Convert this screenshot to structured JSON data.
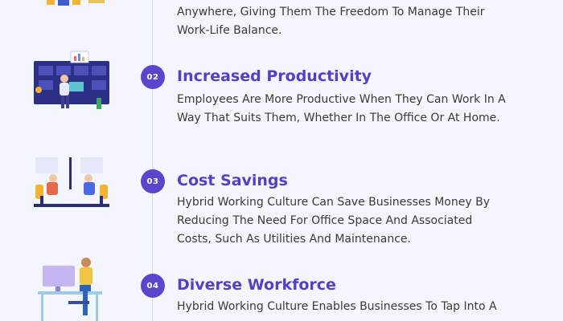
{
  "items": [
    {
      "number": "",
      "title": "",
      "lines": [
        "Anywhere, Giving Them The Freedom To Manage Their",
        "Work-Life Balance."
      ]
    },
    {
      "number": "02",
      "title": "Increased Productivity",
      "lines": [
        "Employees Are More Productive When They Can Work In A",
        "Way That Suits Them, Whether In The Office Or At Home."
      ]
    },
    {
      "number": "03",
      "title": "Cost Savings",
      "lines": [
        "Hybrid Working Culture Can Save Businesses Money By",
        "Reducing The Need For Office Space And Associated",
        "Costs, Such As Utilities And Maintenance."
      ]
    },
    {
      "number": "04",
      "title": "Diverse Workforce",
      "lines": [
        "Hybrid Working Culture Enables Businesses To Tap Into A"
      ]
    }
  ],
  "colors": {
    "accent": "#5847cc",
    "title": "#5340c6",
    "text": "#3a3a3a",
    "background": "#f3f6fd"
  }
}
